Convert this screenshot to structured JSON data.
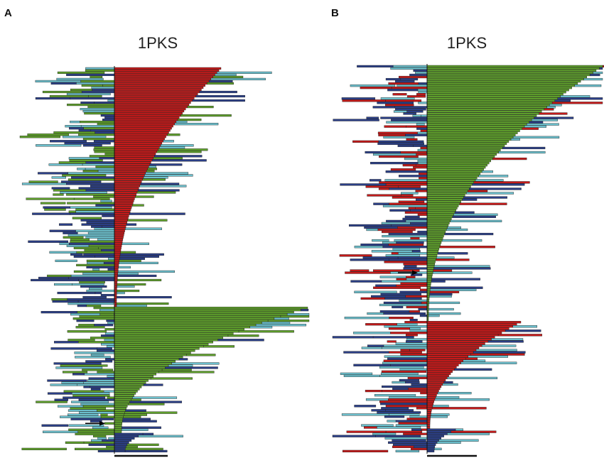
{
  "figure": {
    "colors": {
      "red": "#c41a1a",
      "green": "#5e9e2c",
      "cyan": "#6cbfcc",
      "navy": "#2b3f86",
      "outline": "#1b1b1b",
      "axis": "#111111"
    }
  },
  "chart_data": [
    {
      "type": "bar",
      "orientation": "horizontal",
      "panel_label": "A",
      "title": "1PKS",
      "n_rows": 180,
      "center_groups": [
        {
          "color": "red",
          "rows": [
            0,
            111
          ],
          "length_start": 150,
          "length_end": 3
        },
        {
          "color": "green",
          "rows": [
            112,
            170
          ],
          "length_start": 272,
          "length_end": 10
        },
        {
          "color": "navy",
          "rows": [
            171,
            179
          ],
          "length_start": 40,
          "length_end": 15
        }
      ],
      "arrow_row": 166,
      "scale_bar_length": 75
    },
    {
      "type": "bar",
      "orientation": "horizontal",
      "panel_label": "B",
      "title": "1PKS",
      "n_rows": 180,
      "center_groups": [
        {
          "color": "green",
          "rows": [
            0,
            118
          ],
          "length_start": 247,
          "length_end": 2
        },
        {
          "color": "red",
          "rows": [
            119,
            168
          ],
          "length_start": 132,
          "length_end": 4
        },
        {
          "color": "navy",
          "rows": [
            169,
            179
          ],
          "length_start": 40,
          "length_end": 10
        }
      ],
      "arrow_row": 96,
      "scale_bar_length": 70
    }
  ]
}
